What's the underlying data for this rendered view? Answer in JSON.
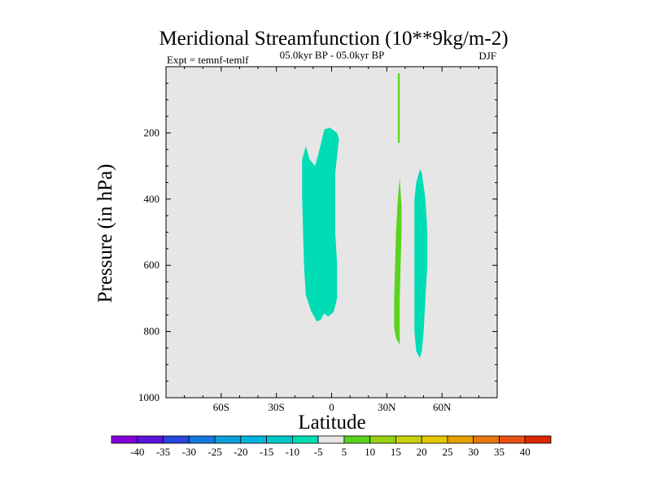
{
  "chart_data": {
    "type": "contour",
    "title": "Meridional Streamfunction (10**9kg/m-2)",
    "subtitle_left": "Expt = temnf-temlf",
    "subtitle_center": "05.0kyr BP - 05.0kyr BP",
    "subtitle_right": "DJF",
    "xlabel": "Latitude",
    "ylabel": "Pressure (in hPa)",
    "xlim": [
      -90,
      90
    ],
    "ylim": [
      0,
      1000
    ],
    "y_inverted": true,
    "x_ticks": [
      {
        "value": -60,
        "label": "60S"
      },
      {
        "value": -30,
        "label": "30S"
      },
      {
        "value": 0,
        "label": "0"
      },
      {
        "value": 30,
        "label": "30N"
      },
      {
        "value": 60,
        "label": "60N"
      }
    ],
    "y_ticks": [
      {
        "value": 200,
        "label": "200"
      },
      {
        "value": 400,
        "label": "400"
      },
      {
        "value": 600,
        "label": "600"
      },
      {
        "value": 800,
        "label": "800"
      },
      {
        "value": 1000,
        "label": "1000"
      }
    ],
    "background_color": "#e6e6e6",
    "regions": [
      {
        "name": "southern-negative-cell",
        "level": "-10 to -5",
        "color": "#00dcb4",
        "points": [
          [
            -14,
            240
          ],
          [
            -12,
            280
          ],
          [
            -9,
            300
          ],
          [
            -7,
            260
          ],
          [
            -4,
            190
          ],
          [
            -1,
            184
          ],
          [
            3,
            200
          ],
          [
            4,
            220
          ],
          [
            2,
            320
          ],
          [
            2,
            500
          ],
          [
            3,
            600
          ],
          [
            3,
            700
          ],
          [
            1,
            742
          ],
          [
            -2,
            755
          ],
          [
            -4,
            745
          ],
          [
            -6,
            765
          ],
          [
            -8,
            770
          ],
          [
            -11,
            740
          ],
          [
            -14,
            690
          ],
          [
            -15,
            600
          ],
          [
            -16,
            400
          ],
          [
            -16,
            280
          ]
        ]
      },
      {
        "name": "upper-positive-streak",
        "level": "5 to 10",
        "color": "#5ad21e",
        "points": [
          [
            36,
            20
          ],
          [
            37,
            20
          ],
          [
            37,
            230
          ],
          [
            36,
            230
          ]
        ]
      },
      {
        "name": "northern-positive-cell",
        "level": "5 to 10",
        "color": "#5ad21e",
        "points": [
          [
            37,
            335
          ],
          [
            38,
            420
          ],
          [
            38,
            500
          ],
          [
            37,
            700
          ],
          [
            37,
            840
          ],
          [
            35,
            820
          ],
          [
            34,
            790
          ],
          [
            34,
            700
          ],
          [
            35,
            500
          ],
          [
            36,
            400
          ]
        ]
      },
      {
        "name": "northern-negative-cell",
        "level": "-10 to -5",
        "color": "#00dcb4",
        "points": [
          [
            48,
            310
          ],
          [
            49,
            320
          ],
          [
            51,
            400
          ],
          [
            52,
            500
          ],
          [
            52,
            600
          ],
          [
            51,
            700
          ],
          [
            50,
            800
          ],
          [
            49,
            860
          ],
          [
            48,
            880
          ],
          [
            46,
            860
          ],
          [
            45,
            800
          ],
          [
            45,
            600
          ],
          [
            45,
            400
          ],
          [
            46,
            350
          ]
        ]
      }
    ],
    "colorbar": {
      "labels": [
        "-40",
        "-35",
        "-30",
        "-25",
        "-20",
        "-15",
        "-10",
        "-5",
        "5",
        "10",
        "15",
        "20",
        "25",
        "30",
        "35",
        "40"
      ],
      "colors": [
        "#8200dc",
        "#5a14dc",
        "#2846dc",
        "#1478dc",
        "#0aa0dc",
        "#00b4dc",
        "#00c8c8",
        "#00dcb4",
        "#e6e6e6",
        "#5ad21e",
        "#96d214",
        "#c8d20a",
        "#e6c800",
        "#e6a000",
        "#e67814",
        "#e65014",
        "#dc2800"
      ]
    }
  }
}
